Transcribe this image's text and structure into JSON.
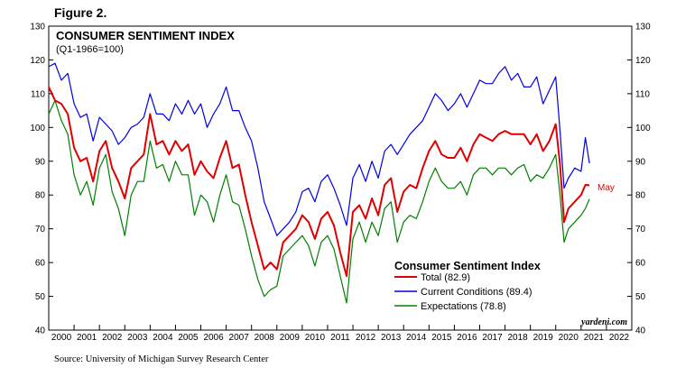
{
  "figure_label": "Figure 2.",
  "source": "Source: University of Michigan Survey Research Center",
  "chart_data": {
    "type": "line",
    "title": "CONSUMER SENTIMENT INDEX",
    "subtitle": "(Q1-1966=100)",
    "ylim": [
      40,
      130
    ],
    "yticks": [
      40,
      50,
      60,
      70,
      80,
      90,
      100,
      110,
      120,
      130
    ],
    "xlim": [
      2000.0,
      2022.0
    ],
    "xtick_labels": [
      "2000",
      "2001",
      "2002",
      "2003",
      "2004",
      "2005",
      "2006",
      "2007",
      "2008",
      "2009",
      "2010",
      "2011",
      "2012",
      "2013",
      "2014",
      "2015",
      "2016",
      "2017",
      "2018",
      "2019",
      "2020",
      "2021",
      "2022"
    ],
    "legend_title": "Consumer Sentiment Index",
    "watermark": "yardeni.com",
    "annotation": {
      "text": "May",
      "x": 2021.4,
      "y": 82.9,
      "color": "#e00000"
    },
    "series": [
      {
        "name": "Total (82.9)",
        "color": "#e00000",
        "x": [
          2000.0,
          2000.25,
          2000.5,
          2000.75,
          2001.0,
          2001.25,
          2001.5,
          2001.75,
          2002.0,
          2002.25,
          2002.5,
          2002.75,
          2003.0,
          2003.25,
          2003.5,
          2003.75,
          2004.0,
          2004.25,
          2004.5,
          2004.75,
          2005.0,
          2005.25,
          2005.5,
          2005.75,
          2006.0,
          2006.25,
          2006.5,
          2006.75,
          2007.0,
          2007.25,
          2007.5,
          2007.75,
          2008.0,
          2008.25,
          2008.5,
          2008.75,
          2009.0,
          2009.25,
          2009.5,
          2009.75,
          2010.0,
          2010.25,
          2010.5,
          2010.75,
          2011.0,
          2011.25,
          2011.5,
          2011.75,
          2012.0,
          2012.25,
          2012.5,
          2012.75,
          2013.0,
          2013.25,
          2013.5,
          2013.75,
          2014.0,
          2014.25,
          2014.5,
          2014.75,
          2015.0,
          2015.25,
          2015.5,
          2015.75,
          2016.0,
          2016.25,
          2016.5,
          2016.75,
          2017.0,
          2017.25,
          2017.5,
          2017.75,
          2018.0,
          2018.25,
          2018.5,
          2018.75,
          2019.0,
          2019.25,
          2019.5,
          2019.75,
          2020.0,
          2020.17,
          2020.33,
          2020.5,
          2020.75,
          2021.0,
          2021.17,
          2021.33
        ],
        "values": [
          112,
          108,
          107,
          104,
          94,
          90,
          91,
          84,
          93,
          96,
          88,
          84,
          79,
          88,
          90,
          92,
          104,
          95,
          96,
          92,
          96,
          93,
          95,
          86,
          90,
          87,
          85,
          91,
          96,
          88,
          89,
          80,
          72,
          65,
          58,
          60,
          58,
          66,
          68,
          70,
          74,
          72,
          67,
          73,
          75,
          71,
          63,
          56,
          75,
          77,
          73,
          79,
          74,
          83,
          85,
          75,
          81,
          83,
          82,
          88,
          93,
          96,
          92,
          91,
          91,
          94,
          90,
          95,
          98,
          97,
          96,
          98,
          99,
          98,
          98,
          98,
          95,
          98,
          93,
          96,
          101,
          89,
          72,
          76,
          78,
          80,
          83,
          82.9
        ]
      },
      {
        "name": "Current Conditions (89.4)",
        "color": "#0000e0",
        "x": [
          2000.0,
          2000.25,
          2000.5,
          2000.75,
          2001.0,
          2001.25,
          2001.5,
          2001.75,
          2002.0,
          2002.25,
          2002.5,
          2002.75,
          2003.0,
          2003.25,
          2003.5,
          2003.75,
          2004.0,
          2004.25,
          2004.5,
          2004.75,
          2005.0,
          2005.25,
          2005.5,
          2005.75,
          2006.0,
          2006.25,
          2006.5,
          2006.75,
          2007.0,
          2007.25,
          2007.5,
          2007.75,
          2008.0,
          2008.25,
          2008.5,
          2008.75,
          2009.0,
          2009.25,
          2009.5,
          2009.75,
          2010.0,
          2010.25,
          2010.5,
          2010.75,
          2011.0,
          2011.25,
          2011.5,
          2011.75,
          2012.0,
          2012.25,
          2012.5,
          2012.75,
          2013.0,
          2013.25,
          2013.5,
          2013.75,
          2014.0,
          2014.25,
          2014.5,
          2014.75,
          2015.0,
          2015.25,
          2015.5,
          2015.75,
          2016.0,
          2016.25,
          2016.5,
          2016.75,
          2017.0,
          2017.25,
          2017.5,
          2017.75,
          2018.0,
          2018.25,
          2018.5,
          2018.75,
          2019.0,
          2019.25,
          2019.5,
          2019.75,
          2020.0,
          2020.17,
          2020.33,
          2020.5,
          2020.75,
          2021.0,
          2021.17,
          2021.33
        ],
        "values": [
          118,
          119,
          114,
          116,
          107,
          103,
          104,
          96,
          103,
          101,
          99,
          95,
          97,
          100,
          101,
          103,
          110,
          104,
          104,
          102,
          107,
          104,
          108,
          104,
          107,
          100,
          104,
          107,
          112,
          105,
          105,
          100,
          96,
          88,
          78,
          73,
          68,
          70,
          72,
          75,
          81,
          82,
          78,
          84,
          86,
          82,
          77,
          71,
          85,
          89,
          84,
          90,
          85,
          93,
          95,
          92,
          95,
          98,
          100,
          102,
          106,
          110,
          108,
          105,
          107,
          110,
          106,
          110,
          114,
          113,
          113,
          116,
          118,
          114,
          116,
          112,
          112,
          115,
          107,
          111,
          115,
          99,
          82,
          85,
          88,
          87,
          97,
          89.4
        ]
      },
      {
        "name": "Expectations (78.8)",
        "color": "#008000",
        "x": [
          2000.0,
          2000.25,
          2000.5,
          2000.75,
          2001.0,
          2001.25,
          2001.5,
          2001.75,
          2002.0,
          2002.25,
          2002.5,
          2002.75,
          2003.0,
          2003.25,
          2003.5,
          2003.75,
          2004.0,
          2004.25,
          2004.5,
          2004.75,
          2005.0,
          2005.25,
          2005.5,
          2005.75,
          2006.0,
          2006.25,
          2006.5,
          2006.75,
          2007.0,
          2007.25,
          2007.5,
          2007.75,
          2008.0,
          2008.25,
          2008.5,
          2008.75,
          2009.0,
          2009.25,
          2009.5,
          2009.75,
          2010.0,
          2010.25,
          2010.5,
          2010.75,
          2011.0,
          2011.25,
          2011.5,
          2011.75,
          2012.0,
          2012.25,
          2012.5,
          2012.75,
          2013.0,
          2013.25,
          2013.5,
          2013.75,
          2014.0,
          2014.25,
          2014.5,
          2014.75,
          2015.0,
          2015.25,
          2015.5,
          2015.75,
          2016.0,
          2016.25,
          2016.5,
          2016.75,
          2017.0,
          2017.25,
          2017.5,
          2017.75,
          2018.0,
          2018.25,
          2018.5,
          2018.75,
          2019.0,
          2019.25,
          2019.5,
          2019.75,
          2020.0,
          2020.17,
          2020.33,
          2020.5,
          2020.75,
          2021.0,
          2021.17,
          2021.33
        ],
        "values": [
          104,
          108,
          102,
          98,
          86,
          80,
          84,
          77,
          88,
          92,
          81,
          76,
          68,
          80,
          84,
          84,
          96,
          88,
          89,
          84,
          90,
          86,
          86,
          74,
          80,
          78,
          72,
          80,
          86,
          78,
          77,
          70,
          62,
          55,
          50,
          52,
          53,
          62,
          64,
          66,
          68,
          65,
          59,
          66,
          68,
          64,
          56,
          48,
          67,
          72,
          66,
          72,
          68,
          76,
          78,
          66,
          72,
          74,
          73,
          78,
          84,
          88,
          84,
          82,
          82,
          84,
          80,
          86,
          88,
          88,
          86,
          88,
          88,
          86,
          88,
          89,
          84,
          86,
          85,
          88,
          92,
          80,
          66,
          70,
          72,
          74,
          76,
          78.8
        ]
      }
    ]
  }
}
